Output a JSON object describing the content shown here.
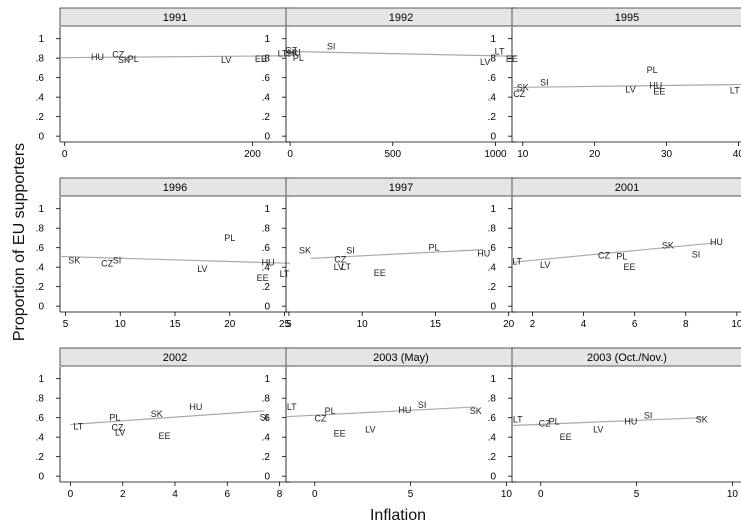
{
  "figure": {
    "xlabel": "Inflation",
    "ylabel": "Proportion of EU supporters"
  },
  "chart_data": [
    {
      "type": "scatter",
      "title": "1991",
      "xlim": [
        -5,
        240
      ],
      "xticks": [
        0,
        200
      ],
      "ylim": [
        -0.06,
        1.12
      ],
      "yticks": [
        0,
        0.2,
        0.4,
        0.6,
        0.8,
        1
      ],
      "ytick_labels": [
        "0",
        ".2",
        ".4",
        ".6",
        ".8",
        "1"
      ],
      "points": [
        {
          "label": "HU",
          "x": 35,
          "y": 0.81
        },
        {
          "label": "CZ",
          "x": 57,
          "y": 0.84
        },
        {
          "label": "SK",
          "x": 63,
          "y": 0.78
        },
        {
          "label": "PL",
          "x": 73,
          "y": 0.79
        },
        {
          "label": "LV",
          "x": 172,
          "y": 0.78
        },
        {
          "label": "EE",
          "x": 209,
          "y": 0.79
        },
        {
          "label": "LT",
          "x": 232,
          "y": 0.85
        }
      ],
      "fit": [
        [
          -5,
          0.805
        ],
        [
          240,
          0.825
        ]
      ]
    },
    {
      "type": "scatter",
      "title": "1992",
      "xlim": [
        -20,
        1100
      ],
      "xticks": [
        0,
        500,
        1000
      ],
      "xtick_labels": [
        "0",
        "500",
        "1000"
      ],
      "ylim": [
        -0.06,
        1.12
      ],
      "yticks": [
        0,
        0.2,
        0.4,
        0.6,
        0.8,
        1
      ],
      "ytick_labels": [
        "0",
        ".2",
        ".4",
        ".6",
        ".8",
        "1"
      ],
      "points": [
        {
          "label": "CZ",
          "x": 5,
          "y": 0.88
        },
        {
          "label": "SK",
          "x": 10,
          "y": 0.85
        },
        {
          "label": "HU",
          "x": 20,
          "y": 0.86
        },
        {
          "label": "PL",
          "x": 40,
          "y": 0.8
        },
        {
          "label": "SI",
          "x": 200,
          "y": 0.92
        },
        {
          "label": "LT",
          "x": 1020,
          "y": 0.87
        },
        {
          "label": "LV",
          "x": 950,
          "y": 0.76
        },
        {
          "label": "EE",
          "x": 1080,
          "y": 0.79
        }
      ],
      "fit": [
        [
          -20,
          0.87
        ],
        [
          1100,
          0.82
        ]
      ]
    },
    {
      "type": "scatter",
      "title": "1995",
      "xlim": [
        8.5,
        40.5
      ],
      "xticks": [
        10,
        20,
        30,
        40
      ],
      "ylim": [
        -0.06,
        1.12
      ],
      "yticks": [
        0,
        0.2,
        0.4,
        0.6,
        0.8,
        1
      ],
      "ytick_labels": [
        "0",
        ".2",
        ".4",
        ".6",
        ".8",
        "1"
      ],
      "points": [
        {
          "label": "SK",
          "x": 10,
          "y": 0.5
        },
        {
          "label": "CZ",
          "x": 9.5,
          "y": 0.43
        },
        {
          "label": "SI",
          "x": 13,
          "y": 0.55
        },
        {
          "label": "PL",
          "x": 28,
          "y": 0.68
        },
        {
          "label": "LV",
          "x": 25,
          "y": 0.48
        },
        {
          "label": "HU",
          "x": 28.5,
          "y": 0.52
        },
        {
          "label": "EE",
          "x": 29,
          "y": 0.46
        },
        {
          "label": "LT",
          "x": 39.5,
          "y": 0.47
        }
      ],
      "fit": [
        [
          8.5,
          0.5
        ],
        [
          40.5,
          0.53
        ]
      ]
    },
    {
      "type": "scatter",
      "title": "1996",
      "xlim": [
        4.5,
        25.5
      ],
      "xticks": [
        5,
        10,
        15,
        20,
        25
      ],
      "ylim": [
        -0.06,
        1.12
      ],
      "yticks": [
        0,
        0.2,
        0.4,
        0.6,
        0.8,
        1
      ],
      "ytick_labels": [
        "0",
        ".2",
        ".4",
        ".6",
        ".8",
        "1"
      ],
      "points": [
        {
          "label": "SK",
          "x": 5.8,
          "y": 0.47
        },
        {
          "label": "CZ",
          "x": 8.8,
          "y": 0.44
        },
        {
          "label": "SI",
          "x": 9.7,
          "y": 0.47
        },
        {
          "label": "PL",
          "x": 20,
          "y": 0.7
        },
        {
          "label": "LV",
          "x": 17.5,
          "y": 0.38
        },
        {
          "label": "HU",
          "x": 23.5,
          "y": 0.45
        },
        {
          "label": "EE",
          "x": 23,
          "y": 0.29
        },
        {
          "label": "LT",
          "x": 25,
          "y": 0.33
        }
      ],
      "fit": [
        [
          4.5,
          0.51
        ],
        [
          25.5,
          0.44
        ]
      ]
    },
    {
      "type": "scatter",
      "title": "1997",
      "xlim": [
        4.8,
        20.5
      ],
      "xticks": [
        5,
        10,
        15,
        20
      ],
      "ylim": [
        -0.06,
        1.12
      ],
      "yticks": [
        0,
        0.2,
        0.4,
        0.6,
        0.8,
        1
      ],
      "ytick_labels": [
        "0",
        ".2",
        ".4",
        ".6",
        ".8",
        "1"
      ],
      "points": [
        {
          "label": "SK",
          "x": 6.1,
          "y": 0.57
        },
        {
          "label": "CZ",
          "x": 8.5,
          "y": 0.48
        },
        {
          "label": "SI",
          "x": 9.2,
          "y": 0.57
        },
        {
          "label": "LV",
          "x": 8.4,
          "y": 0.4
        },
        {
          "label": "LT",
          "x": 8.9,
          "y": 0.4
        },
        {
          "label": "EE",
          "x": 11.2,
          "y": 0.34
        },
        {
          "label": "PL",
          "x": 14.9,
          "y": 0.6
        },
        {
          "label": "HU",
          "x": 18.3,
          "y": 0.54
        }
      ],
      "fit": [
        [
          6.5,
          0.49
        ],
        [
          18.3,
          0.58
        ]
      ]
    },
    {
      "type": "scatter",
      "title": "2001",
      "xlim": [
        1.2,
        10.2
      ],
      "xticks": [
        2,
        4,
        6,
        8,
        10
      ],
      "ylim": [
        -0.06,
        1.12
      ],
      "yticks": [
        0,
        0.2,
        0.4,
        0.6,
        0.8,
        1
      ],
      "ytick_labels": [
        "0",
        ".2",
        ".4",
        ".6",
        ".8",
        "1"
      ],
      "points": [
        {
          "label": "LT",
          "x": 1.4,
          "y": 0.46
        },
        {
          "label": "LV",
          "x": 2.5,
          "y": 0.42
        },
        {
          "label": "CZ",
          "x": 4.8,
          "y": 0.52
        },
        {
          "label": "PL",
          "x": 5.5,
          "y": 0.51
        },
        {
          "label": "EE",
          "x": 5.8,
          "y": 0.4
        },
        {
          "label": "SK",
          "x": 7.3,
          "y": 0.62
        },
        {
          "label": "SI",
          "x": 8.4,
          "y": 0.53
        },
        {
          "label": "HU",
          "x": 9.2,
          "y": 0.66
        }
      ],
      "fit": [
        [
          1.2,
          0.45
        ],
        [
          9.2,
          0.65
        ]
      ]
    },
    {
      "type": "scatter",
      "title": "2002",
      "xlim": [
        -0.4,
        8.4
      ],
      "xticks": [
        0,
        2,
        4,
        6,
        8
      ],
      "ylim": [
        -0.06,
        1.12
      ],
      "yticks": [
        0,
        0.2,
        0.4,
        0.6,
        0.8,
        1
      ],
      "ytick_labels": [
        "0",
        ".2",
        ".4",
        ".6",
        ".8",
        "1"
      ],
      "points": [
        {
          "label": "LT",
          "x": 0.3,
          "y": 0.51
        },
        {
          "label": "PL",
          "x": 1.7,
          "y": 0.6
        },
        {
          "label": "CZ",
          "x": 1.8,
          "y": 0.5
        },
        {
          "label": "LV",
          "x": 1.9,
          "y": 0.45
        },
        {
          "label": "SK",
          "x": 3.3,
          "y": 0.64
        },
        {
          "label": "EE",
          "x": 3.6,
          "y": 0.41
        },
        {
          "label": "HU",
          "x": 4.8,
          "y": 0.71
        },
        {
          "label": "SI",
          "x": 7.4,
          "y": 0.6
        }
      ],
      "fit": [
        [
          0,
          0.53
        ],
        [
          7.4,
          0.67
        ]
      ]
    },
    {
      "type": "scatter",
      "title": "2003 (May)",
      "xlim": [
        -1.5,
        10.5
      ],
      "xticks": [
        0,
        5,
        10
      ],
      "ylim": [
        -0.06,
        1.12
      ],
      "yticks": [
        0,
        0.2,
        0.4,
        0.6,
        0.8,
        1
      ],
      "ytick_labels": [
        "0",
        ".2",
        ".4",
        ".6",
        ".8",
        "1"
      ],
      "points": [
        {
          "label": "LT",
          "x": -1.2,
          "y": 0.71
        },
        {
          "label": "PL",
          "x": 0.8,
          "y": 0.67
        },
        {
          "label": "CZ",
          "x": 0.3,
          "y": 0.59
        },
        {
          "label": "EE",
          "x": 1.3,
          "y": 0.44
        },
        {
          "label": "LV",
          "x": 2.9,
          "y": 0.48
        },
        {
          "label": "HU",
          "x": 4.7,
          "y": 0.68
        },
        {
          "label": "SI",
          "x": 5.6,
          "y": 0.73
        },
        {
          "label": "SK",
          "x": 8.4,
          "y": 0.67
        }
      ],
      "fit": [
        [
          -1.5,
          0.61
        ],
        [
          8.4,
          0.71
        ]
      ]
    },
    {
      "type": "scatter",
      "title": "2003 (Oct./Nov.)",
      "xlim": [
        -1.5,
        10.5
      ],
      "xticks": [
        0,
        5,
        10
      ],
      "ylim": [
        -0.06,
        1.12
      ],
      "yticks": [
        0,
        0.2,
        0.4,
        0.6,
        0.8,
        1
      ],
      "ytick_labels": [
        "0",
        ".2",
        ".4",
        ".6",
        ".8",
        "1"
      ],
      "points": [
        {
          "label": "LT",
          "x": -1.2,
          "y": 0.58
        },
        {
          "label": "CZ",
          "x": 0.2,
          "y": 0.54
        },
        {
          "label": "PL",
          "x": 0.7,
          "y": 0.56
        },
        {
          "label": "EE",
          "x": 1.3,
          "y": 0.4
        },
        {
          "label": "LV",
          "x": 3.0,
          "y": 0.48
        },
        {
          "label": "HU",
          "x": 4.7,
          "y": 0.56
        },
        {
          "label": "SI",
          "x": 5.6,
          "y": 0.62
        },
        {
          "label": "SK",
          "x": 8.4,
          "y": 0.58
        }
      ],
      "fit": [
        [
          -1.5,
          0.52
        ],
        [
          8.4,
          0.6
        ]
      ]
    }
  ]
}
